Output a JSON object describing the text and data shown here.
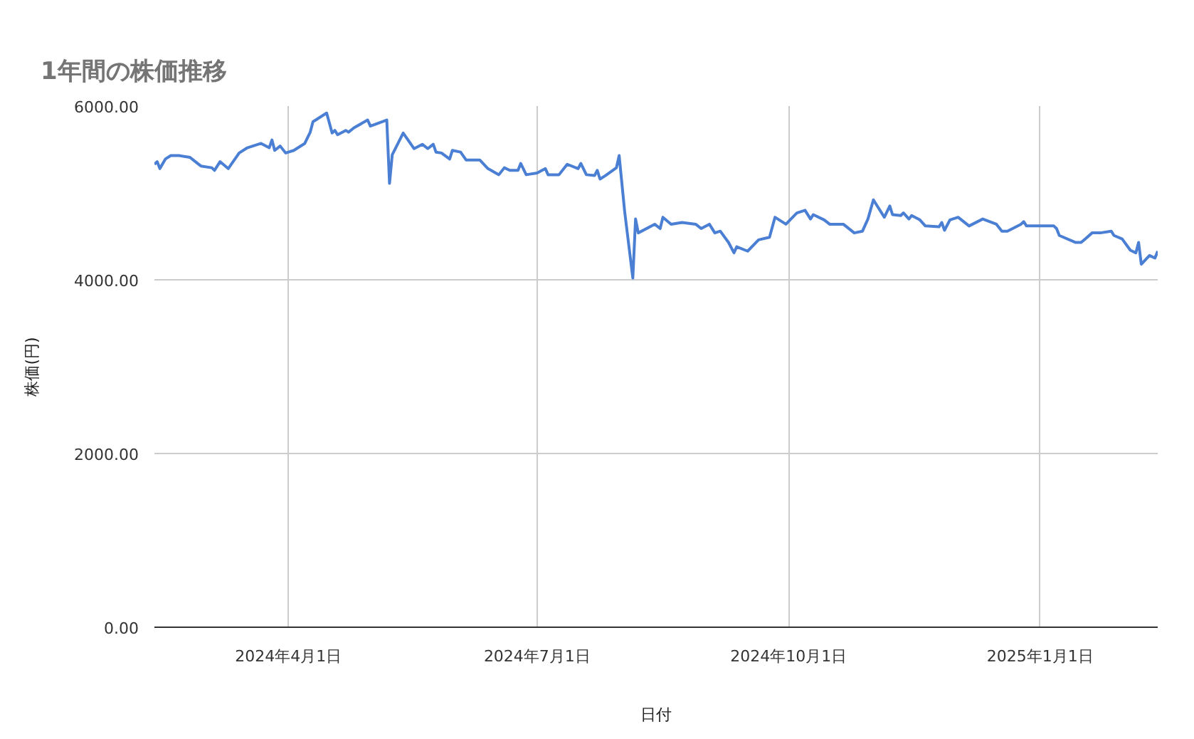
{
  "chart_data": {
    "type": "line",
    "title": "1年間の株価推移",
    "xlabel": "日付",
    "ylabel": "株価(円)",
    "x": [
      "2024-02-12",
      "2024-02-13",
      "2024-02-14",
      "2024-02-16",
      "2024-02-18",
      "2024-02-21",
      "2024-02-25",
      "2024-02-27",
      "2024-02-29",
      "2024-03-04",
      "2024-03-05",
      "2024-03-07",
      "2024-03-10",
      "2024-03-14",
      "2024-03-17",
      "2024-03-22",
      "2024-03-25",
      "2024-03-26",
      "2024-03-27",
      "2024-03-29",
      "2024-03-31",
      "2024-04-03",
      "2024-04-07",
      "2024-04-09",
      "2024-04-10",
      "2024-04-15",
      "2024-04-17",
      "2024-04-18",
      "2024-04-19",
      "2024-04-22",
      "2024-04-23",
      "2024-04-25",
      "2024-04-30",
      "2024-05-01",
      "2024-05-07",
      "2024-05-08",
      "2024-05-09",
      "2024-05-13",
      "2024-05-17",
      "2024-05-20",
      "2024-05-22",
      "2024-05-24",
      "2024-05-25",
      "2024-05-27",
      "2024-05-30",
      "2024-05-31",
      "2024-06-03",
      "2024-06-05",
      "2024-06-10",
      "2024-06-13",
      "2024-06-17",
      "2024-06-19",
      "2024-06-21",
      "2024-06-24",
      "2024-06-25",
      "2024-06-27",
      "2024-07-01",
      "2024-07-04",
      "2024-07-05",
      "2024-07-09",
      "2024-07-12",
      "2024-07-16",
      "2024-07-17",
      "2024-07-19",
      "2024-07-22",
      "2024-07-23",
      "2024-07-24",
      "2024-07-26",
      "2024-07-30",
      "2024-07-31",
      "2024-08-02",
      "2024-08-05",
      "2024-08-06",
      "2024-08-07",
      "2024-08-13",
      "2024-08-15",
      "2024-08-16",
      "2024-08-19",
      "2024-08-23",
      "2024-08-28",
      "2024-08-30",
      "2024-09-02",
      "2024-09-04",
      "2024-09-06",
      "2024-09-09",
      "2024-09-11",
      "2024-09-12",
      "2024-09-16",
      "2024-09-20",
      "2024-09-24",
      "2024-09-26",
      "2024-09-30",
      "2024-10-04",
      "2024-10-07",
      "2024-10-09",
      "2024-10-10",
      "2024-10-14",
      "2024-10-16",
      "2024-10-21",
      "2024-10-25",
      "2024-10-28",
      "2024-10-30",
      "2024-11-01",
      "2024-11-05",
      "2024-11-07",
      "2024-11-08",
      "2024-11-11",
      "2024-11-12",
      "2024-11-14",
      "2024-11-15",
      "2024-11-18",
      "2024-11-20",
      "2024-11-25",
      "2024-11-26",
      "2024-11-27",
      "2024-11-29",
      "2024-12-02",
      "2024-12-06",
      "2024-12-11",
      "2024-12-16",
      "2024-12-18",
      "2024-12-20",
      "2024-12-25",
      "2024-12-26",
      "2024-12-27",
      "2025-01-06",
      "2025-01-07",
      "2025-01-08",
      "2025-01-14",
      "2025-01-16",
      "2025-01-20",
      "2025-01-23",
      "2025-01-27",
      "2025-01-28",
      "2025-01-31",
      "2025-02-03",
      "2025-02-05",
      "2025-02-06",
      "2025-02-07",
      "2025-02-10",
      "2025-02-12",
      "2025-02-13"
    ],
    "series": [
      {
        "color": "#4a7fd4",
        "values": [
          5330,
          5360,
          5280,
          5390,
          5430,
          5430,
          5410,
          5360,
          5310,
          5290,
          5260,
          5360,
          5280,
          5460,
          5520,
          5570,
          5520,
          5610,
          5490,
          5540,
          5460,
          5490,
          5570,
          5700,
          5820,
          5920,
          5690,
          5720,
          5670,
          5720,
          5700,
          5750,
          5840,
          5770,
          5840,
          5110,
          5440,
          5690,
          5510,
          5560,
          5510,
          5560,
          5470,
          5460,
          5390,
          5490,
          5470,
          5380,
          5380,
          5280,
          5210,
          5290,
          5260,
          5260,
          5340,
          5210,
          5230,
          5280,
          5210,
          5210,
          5330,
          5280,
          5340,
          5210,
          5200,
          5260,
          5160,
          5200,
          5290,
          5430,
          4790,
          4020,
          4700,
          4540,
          4640,
          4590,
          4720,
          4640,
          4660,
          4640,
          4590,
          4640,
          4540,
          4560,
          4430,
          4310,
          4380,
          4330,
          4460,
          4490,
          4720,
          4640,
          4770,
          4800,
          4700,
          4750,
          4690,
          4640,
          4640,
          4540,
          4560,
          4700,
          4920,
          4720,
          4850,
          4750,
          4740,
          4770,
          4700,
          4740,
          4690,
          4620,
          4610,
          4660,
          4570,
          4690,
          4720,
          4620,
          4700,
          4640,
          4560,
          4560,
          4640,
          4670,
          4620,
          4620,
          4590,
          4510,
          4430,
          4430,
          4540,
          4540,
          4560,
          4510,
          4470,
          4340,
          4310,
          4430,
          4180,
          4280,
          4250,
          4330
        ]
      }
    ],
    "xlim": [
      "2024-02-12",
      "2025-02-13"
    ],
    "xticks": [
      {
        "value": "2024-04-01",
        "label": "2024年4月1日"
      },
      {
        "value": "2024-07-01",
        "label": "2024年7月1日"
      },
      {
        "value": "2024-10-01",
        "label": "2024年10月1日"
      },
      {
        "value": "2025-01-01",
        "label": "2025年1月1日"
      }
    ],
    "ylim": [
      0,
      6000
    ],
    "yticks": [
      {
        "value": 0,
        "label": "0.00"
      },
      {
        "value": 2000,
        "label": "2000.00"
      },
      {
        "value": 4000,
        "label": "4000.00"
      },
      {
        "value": 6000,
        "label": "6000.00"
      }
    ],
    "grid": true,
    "marker": "none",
    "line_style": "solid"
  }
}
